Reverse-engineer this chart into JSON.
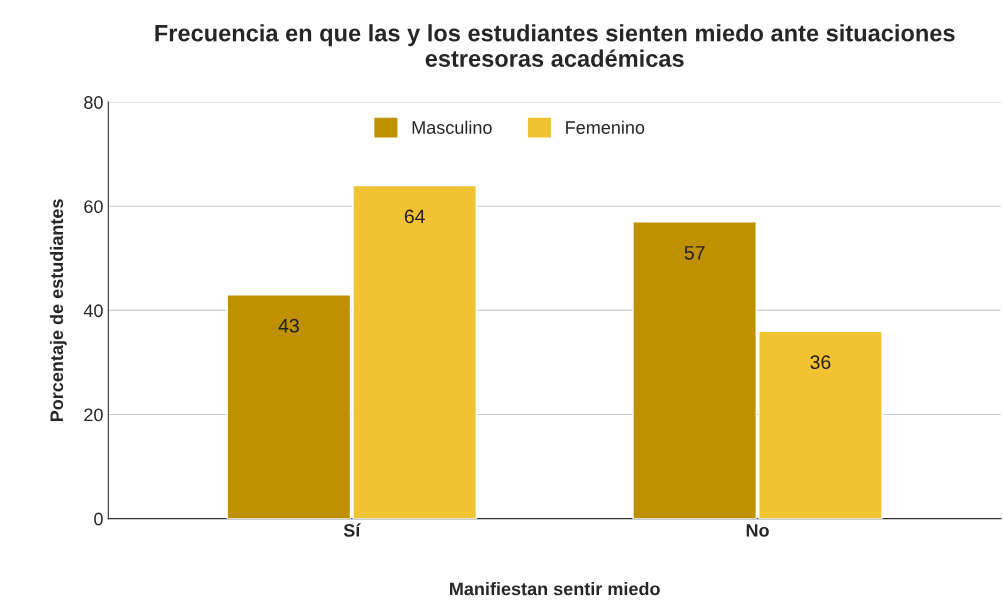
{
  "chart_data": {
    "type": "bar",
    "title": "Frecuencia en que las y los estudiantes sienten miedo ante situaciones estresoras académicas",
    "xlabel": "Manifiestan sentir miedo",
    "ylabel": "Porcentaje de estudiantes",
    "categories": [
      "Sí",
      "No"
    ],
    "series": [
      {
        "name": "Masculino",
        "color": "#bf9000",
        "values": [
          43,
          57
        ]
      },
      {
        "name": "Femenino",
        "color": "#f1c232",
        "values": [
          64,
          36
        ]
      }
    ],
    "ylim": [
      0,
      80
    ],
    "yticks": [
      0,
      20,
      40,
      60,
      80
    ],
    "grid": "y",
    "legend": "top",
    "data_labels": true
  }
}
